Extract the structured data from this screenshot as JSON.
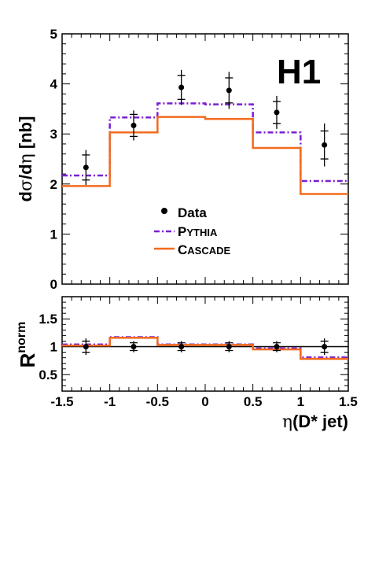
{
  "chart_data": [
    {
      "type": "line",
      "panel": "main",
      "logo": "H1",
      "ylabel_parts": {
        "d1": "d",
        "sigma": "σ",
        "slash": "/d",
        "eta": "η",
        "unit": " [nb]"
      },
      "xlim": [
        -1.5,
        1.5
      ],
      "ylim": [
        0,
        5
      ],
      "yticks": [
        "0",
        "1",
        "2",
        "3",
        "4",
        "5"
      ],
      "bin_edges": [
        -1.5,
        -1.0,
        -0.5,
        0.0,
        0.5,
        1.0,
        1.5
      ],
      "data": {
        "name": "Data",
        "x": [
          -1.25,
          -0.75,
          -0.25,
          0.25,
          0.75,
          1.25
        ],
        "y": [
          2.33,
          3.17,
          3.93,
          3.87,
          3.43,
          2.78
        ],
        "stat_err": [
          0.25,
          0.22,
          0.24,
          0.25,
          0.22,
          0.28
        ],
        "tot_err": [
          0.35,
          0.3,
          0.35,
          0.37,
          0.33,
          0.43
        ]
      },
      "series": [
        {
          "name": "PYTHIA",
          "label_big": "P",
          "label_small": "YTHIA",
          "color": "#7a1fd2",
          "style": "dash-dot",
          "values": [
            2.17,
            3.33,
            3.61,
            3.59,
            3.03,
            2.06
          ]
        },
        {
          "name": "CASCADE",
          "label_big": "C",
          "label_small": "ASCADE",
          "color": "#f26b1d",
          "style": "solid",
          "values": [
            1.96,
            3.03,
            3.34,
            3.3,
            2.72,
            1.8
          ]
        }
      ],
      "legend": {
        "position": "center",
        "data_label": "Data"
      },
      "grid": false
    },
    {
      "type": "line",
      "panel": "ratio",
      "ylabel_main": "R",
      "ylabel_sup": "norm",
      "xlabel_parts": {
        "eta": "η",
        "rest": "(D* jet)"
      },
      "xticks": [
        "-1.5",
        "-1",
        "-0.5",
        "0",
        "0.5",
        "1",
        "1.5"
      ],
      "xlim": [
        -1.5,
        1.5
      ],
      "ylim": [
        0.2,
        1.9
      ],
      "yticks": [
        "0.5",
        "1",
        "1.5"
      ],
      "reference_line": 1.0,
      "data": {
        "x": [
          -1.25,
          -0.75,
          -0.25,
          0.25,
          0.75,
          1.25
        ],
        "y": [
          1.0,
          1.0,
          1.0,
          1.0,
          1.0,
          1.0
        ],
        "stat_err": [
          0.1,
          0.07,
          0.07,
          0.07,
          0.07,
          0.1
        ],
        "tot_err": [
          0.15,
          0.1,
          0.1,
          0.1,
          0.1,
          0.15
        ]
      },
      "series": [
        {
          "name": "PYTHIA",
          "color": "#7a1fd2",
          "style": "dash-dot",
          "values": [
            1.04,
            1.17,
            1.04,
            1.04,
            0.97,
            0.81
          ]
        },
        {
          "name": "CASCADE",
          "color": "#f26b1d",
          "style": "solid",
          "values": [
            1.02,
            1.16,
            1.03,
            1.03,
            0.95,
            0.78
          ]
        }
      ]
    }
  ]
}
